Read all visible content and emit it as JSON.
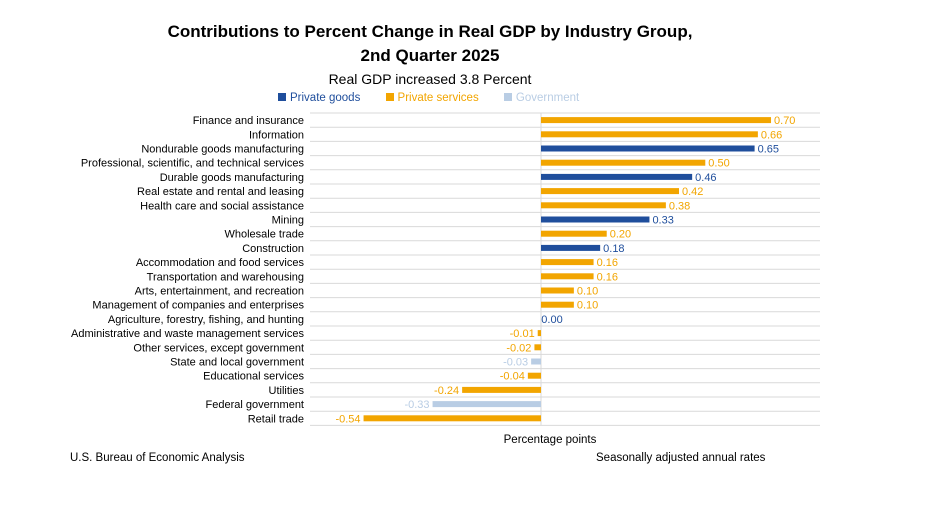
{
  "chart_data": {
    "type": "bar",
    "orientation": "horizontal",
    "title_line1": "Contributions to Percent Change in Real GDP by Industry Group,",
    "title_line2": "2nd Quarter 2025",
    "subtitle": "Real GDP increased 3.8 Percent",
    "xlabel": "Percentage points",
    "legend_position": "top",
    "legend": [
      {
        "name": "Private goods",
        "color": "#1f4e9c"
      },
      {
        "name": "Private services",
        "color": "#f2a500"
      },
      {
        "name": "Government",
        "color": "#b9cde4"
      }
    ],
    "xlim": [
      -0.54,
      0.7
    ],
    "grid": true,
    "bars": [
      {
        "category": "Finance and insurance",
        "value": 0.7,
        "label": "0.70",
        "group": "Private services"
      },
      {
        "category": "Information",
        "value": 0.66,
        "label": "0.66",
        "group": "Private services"
      },
      {
        "category": "Nondurable goods manufacturing",
        "value": 0.65,
        "label": "0.65",
        "group": "Private goods"
      },
      {
        "category": "Professional, scientific, and technical services",
        "value": 0.5,
        "label": "0.50",
        "group": "Private services"
      },
      {
        "category": "Durable goods manufacturing",
        "value": 0.46,
        "label": "0.46",
        "group": "Private goods"
      },
      {
        "category": "Real estate and rental and leasing",
        "value": 0.42,
        "label": "0.42",
        "group": "Private services"
      },
      {
        "category": "Health care and social assistance",
        "value": 0.38,
        "label": "0.38",
        "group": "Private services"
      },
      {
        "category": "Mining",
        "value": 0.33,
        "label": "0.33",
        "group": "Private goods"
      },
      {
        "category": "Wholesale trade",
        "value": 0.2,
        "label": "0.20",
        "group": "Private services"
      },
      {
        "category": "Construction",
        "value": 0.18,
        "label": "0.18",
        "group": "Private goods"
      },
      {
        "category": "Accommodation and food services",
        "value": 0.16,
        "label": "0.16",
        "group": "Private services"
      },
      {
        "category": "Transportation and warehousing",
        "value": 0.16,
        "label": "0.16",
        "group": "Private services"
      },
      {
        "category": "Arts, entertainment, and recreation",
        "value": 0.1,
        "label": "0.10",
        "group": "Private services"
      },
      {
        "category": "Management of companies and enterprises",
        "value": 0.1,
        "label": "0.10",
        "group": "Private services"
      },
      {
        "category": "Agriculture, forestry, fishing, and hunting",
        "value": 0.0,
        "label": "0.00",
        "group": "Private goods"
      },
      {
        "category": "Administrative and waste management services",
        "value": -0.01,
        "label": "-0.01",
        "group": "Private services"
      },
      {
        "category": "Other services, except government",
        "value": -0.02,
        "label": "-0.02",
        "group": "Private services"
      },
      {
        "category": "State and local government",
        "value": -0.03,
        "label": "-0.03",
        "group": "Government"
      },
      {
        "category": "Educational services",
        "value": -0.04,
        "label": "-0.04",
        "group": "Private services"
      },
      {
        "category": "Utilities",
        "value": -0.24,
        "label": "-0.24",
        "group": "Private services"
      },
      {
        "category": "Federal government",
        "value": -0.33,
        "label": "-0.33",
        "group": "Government"
      },
      {
        "category": "Retail trade",
        "value": -0.54,
        "label": "-0.54",
        "group": "Private services"
      }
    ]
  },
  "footer": {
    "source": "U.S. Bureau of Economic Analysis",
    "note": "Seasonally adjusted annual rates"
  }
}
